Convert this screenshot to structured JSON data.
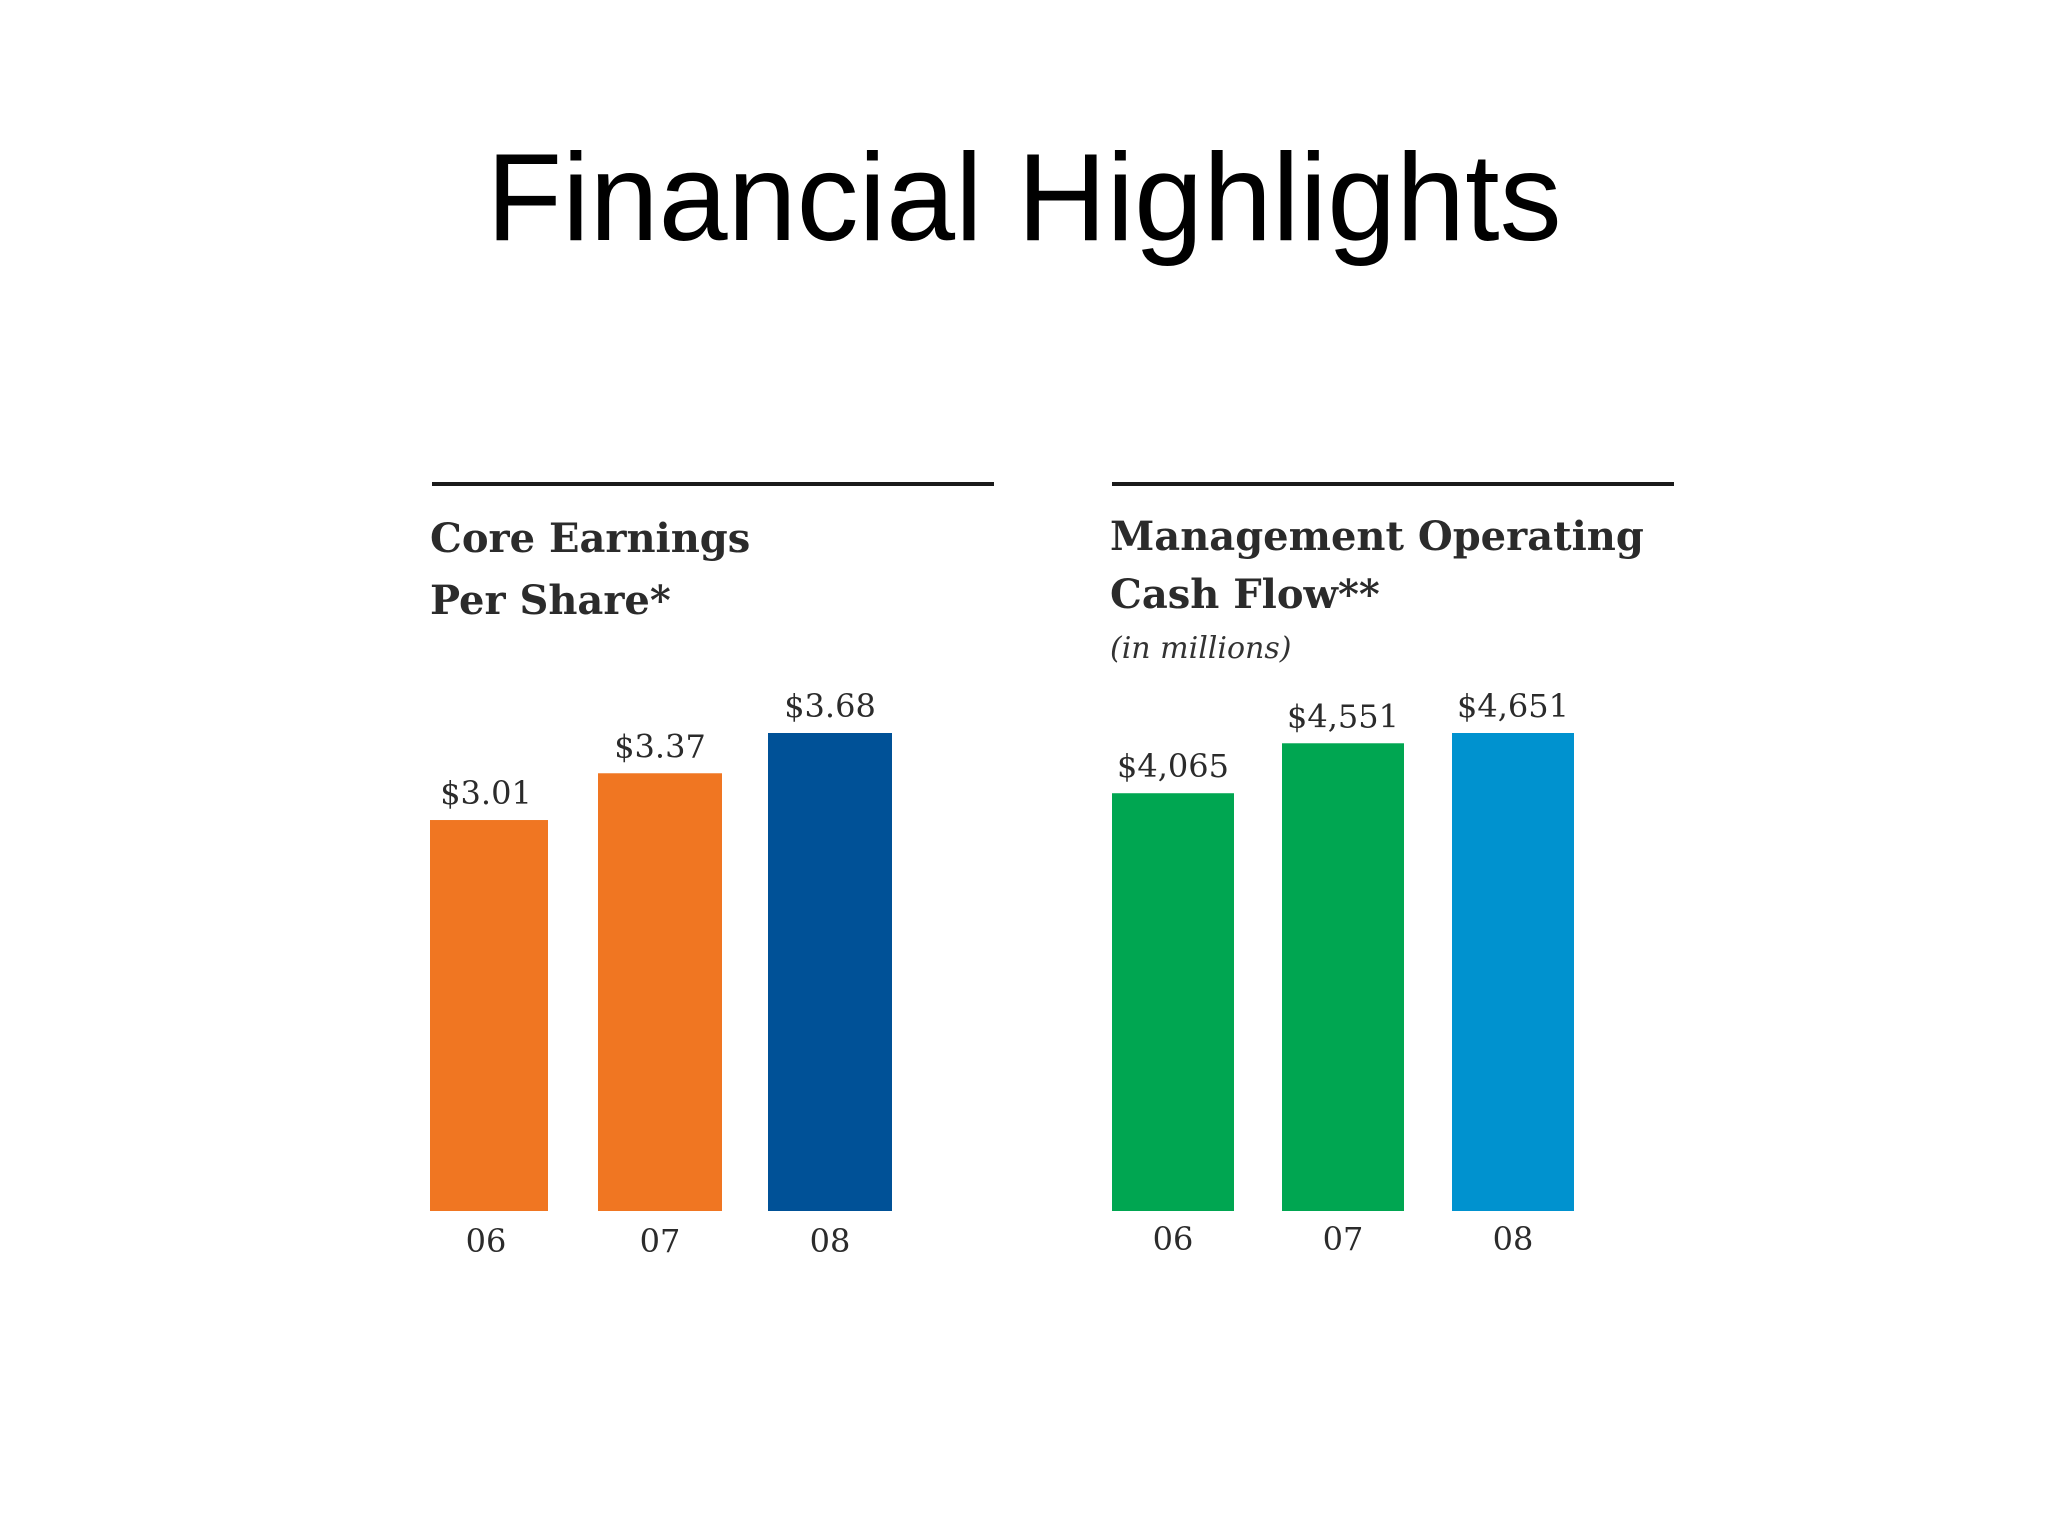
{
  "slide": {
    "title": "Financial Highlights"
  },
  "chart_data": [
    {
      "type": "bar",
      "title_lines": [
        "Core Earnings",
        "Per Share*"
      ],
      "subtitle": "",
      "categories": [
        "06",
        "07",
        "08"
      ],
      "values": [
        3.01,
        3.37,
        3.68
      ],
      "value_labels": [
        "$3.01",
        "$3.37",
        "$3.68"
      ],
      "bar_colors": [
        "#f07622",
        "#f07622",
        "#005197"
      ],
      "ylim": [
        0,
        3.68
      ],
      "xlabel": "",
      "ylabel": "",
      "grid": false
    },
    {
      "type": "bar",
      "title_lines": [
        "Management Operating",
        "Cash Flow**"
      ],
      "subtitle": "(in millions)",
      "categories": [
        "06",
        "07",
        "08"
      ],
      "values": [
        4065,
        4551,
        4651
      ],
      "value_labels": [
        "$4,065",
        "$4,551",
        "$4,651"
      ],
      "bar_colors": [
        "#00a651",
        "#00a651",
        "#0092cf"
      ],
      "ylim": [
        0,
        4651
      ],
      "xlabel": "",
      "ylabel": "",
      "grid": false
    }
  ]
}
